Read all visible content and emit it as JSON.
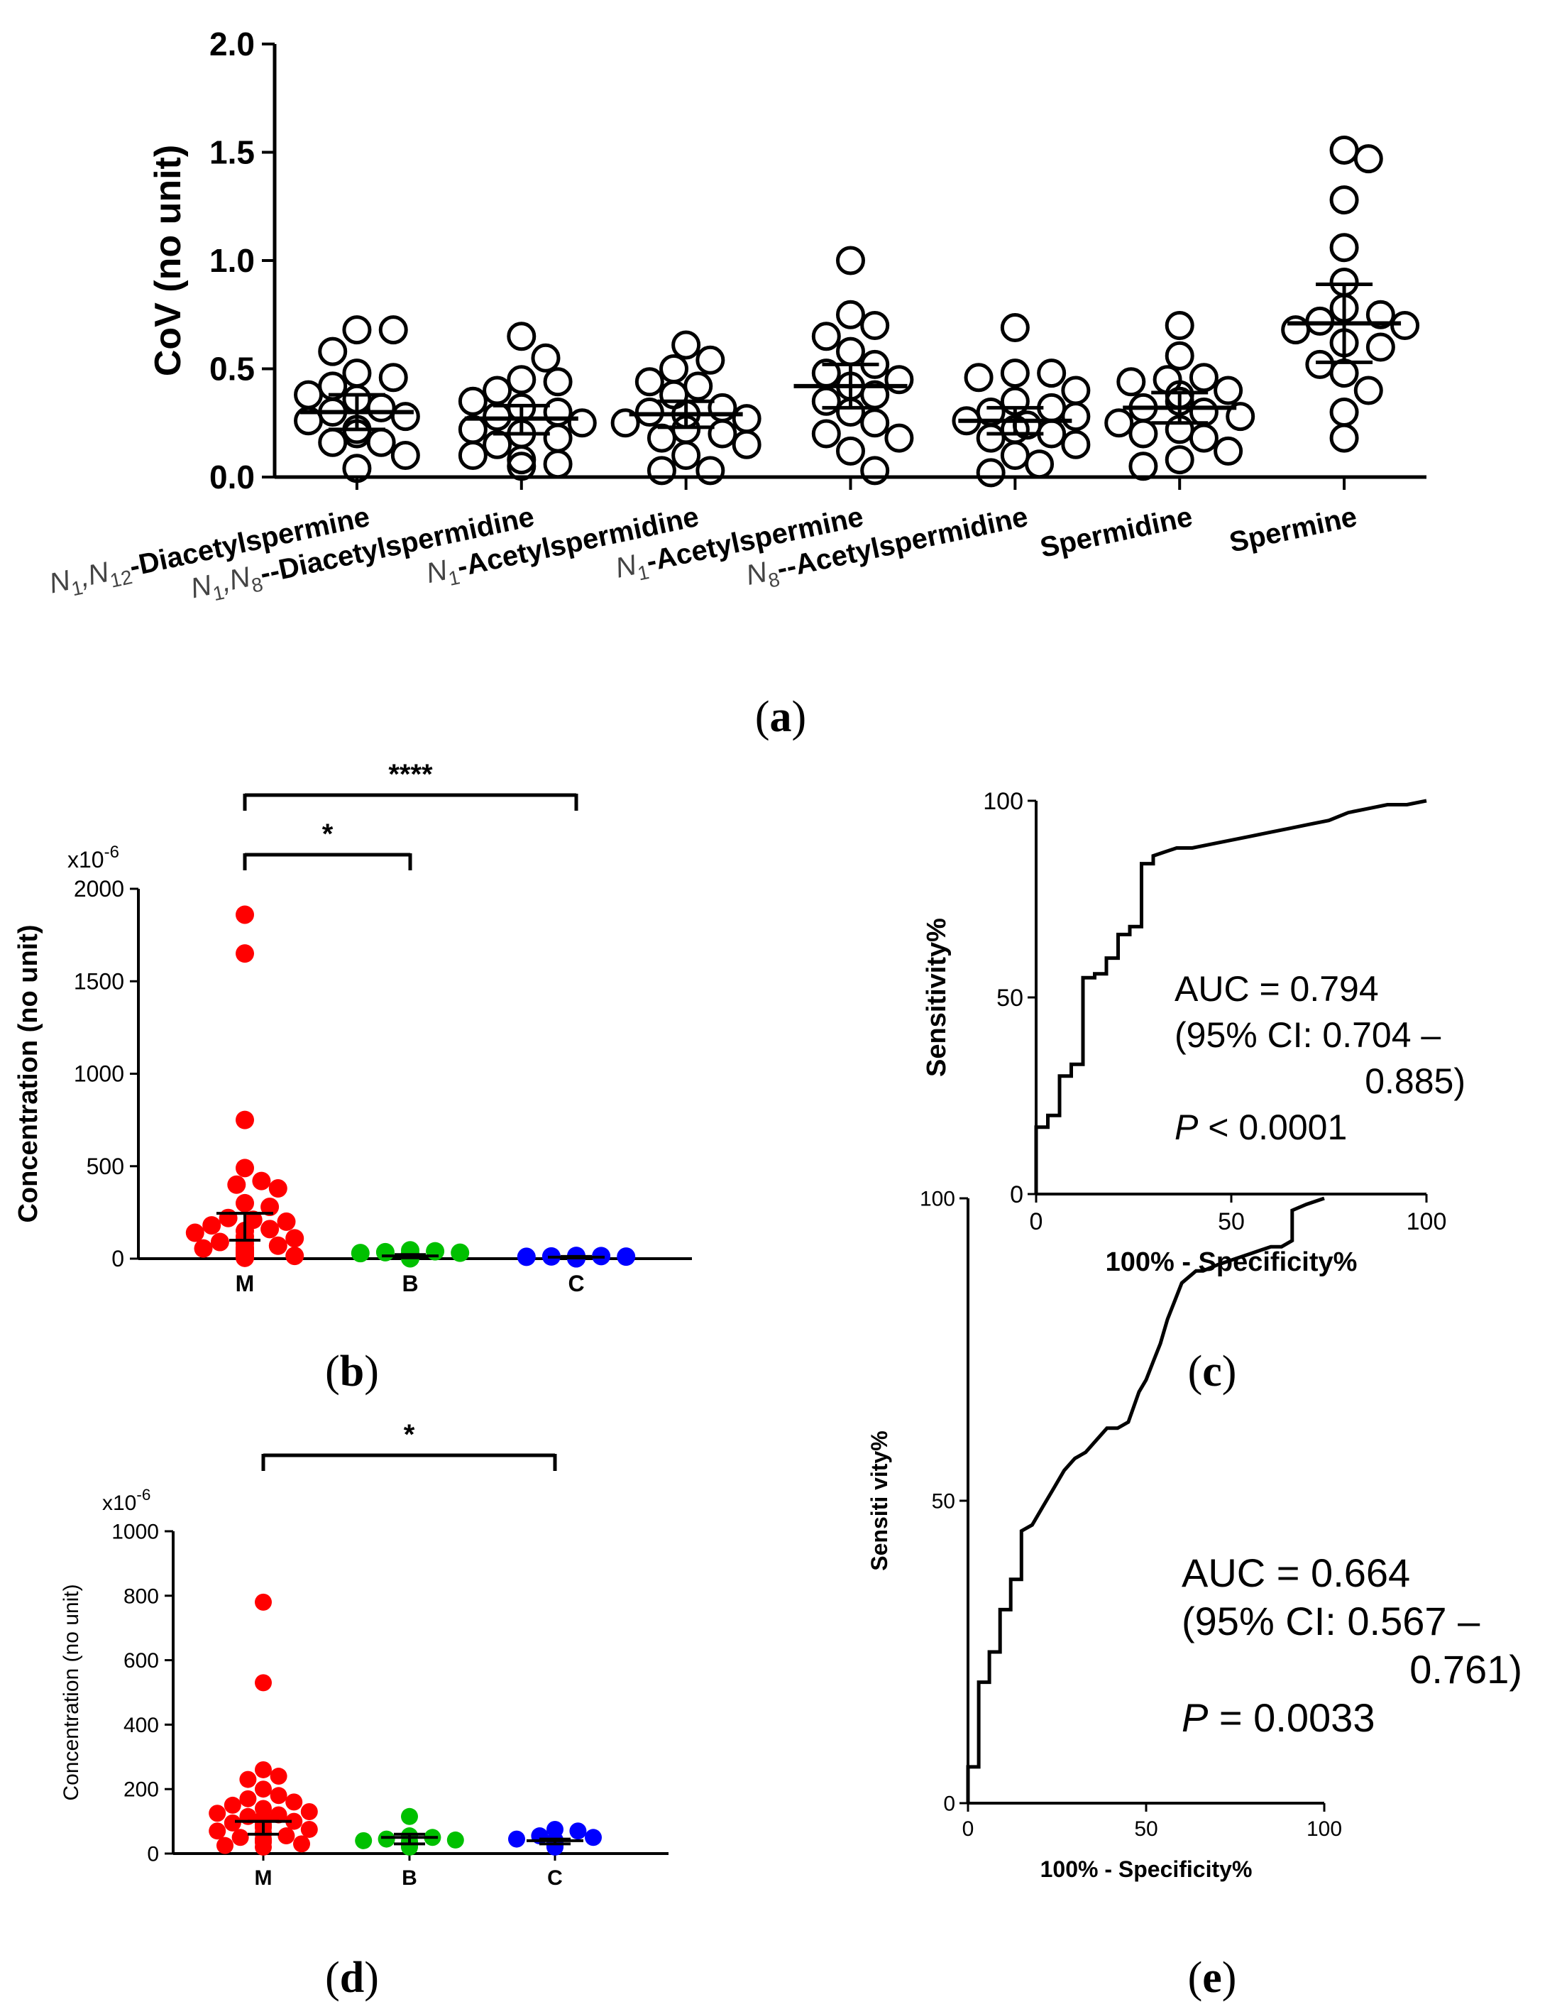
{
  "panel_labels": {
    "a": [
      "(",
      "a",
      ")"
    ],
    "b": [
      "(",
      "b",
      ")"
    ],
    "c": [
      "(",
      "c",
      ")"
    ],
    "d": [
      "(",
      "d",
      ")"
    ],
    "e": [
      "(",
      "e",
      ")"
    ]
  },
  "colors": {
    "M": "#ff0000",
    "B": "#00c000",
    "C": "#0000ff",
    "axis": "#000000"
  },
  "chart_data": [
    {
      "id": "a",
      "type": "scatter",
      "title": "",
      "ylabel": "CoV (no unit)",
      "ylim": [
        0,
        2
      ],
      "yticks": [
        "0.0",
        "0.5",
        "1.0",
        "1.5",
        "2.0"
      ],
      "ytick_values": [
        0,
        0.5,
        1.0,
        1.5,
        2.0
      ],
      "categories": [
        {
          "parts": [
            [
              "N",
              "i"
            ],
            [
              "1",
              "sub"
            ],
            [
              ",",
              "i"
            ],
            [
              "N",
              "i"
            ],
            [
              "12",
              "sub"
            ],
            [
              "-Diacetylspermine",
              "b"
            ]
          ]
        },
        {
          "parts": [
            [
              "N",
              "i"
            ],
            [
              "1",
              "sub"
            ],
            [
              ",",
              "i"
            ],
            [
              "N",
              "i"
            ],
            [
              "8",
              "sub"
            ],
            [
              "--Diacetylspermidine",
              "b"
            ]
          ]
        },
        {
          "parts": [
            [
              "N",
              "i"
            ],
            [
              "1",
              "sub"
            ],
            [
              "-Acetylspermidine",
              "b"
            ]
          ]
        },
        {
          "parts": [
            [
              "N",
              "i"
            ],
            [
              "1",
              "sub"
            ],
            [
              "-Acetylspermine",
              "b"
            ]
          ]
        },
        {
          "parts": [
            [
              "N",
              "i"
            ],
            [
              "8",
              "sub"
            ],
            [
              "--Acetylspermidine",
              "b"
            ]
          ]
        },
        {
          "parts": [
            [
              "Spermidine",
              "b"
            ]
          ]
        },
        {
          "parts": [
            [
              "Spermine",
              "b"
            ]
          ]
        }
      ],
      "series": [
        {
          "name": "N1,N12-Diacetylspermine",
          "mean": 0.3,
          "sem_low": 0.22,
          "sem_high": 0.38,
          "values": [
            0.68,
            0.68,
            0.58,
            0.48,
            0.46,
            0.42,
            0.38,
            0.36,
            0.32,
            0.3,
            0.28,
            0.26,
            0.22,
            0.2,
            0.16,
            0.16,
            0.1,
            0.04
          ]
        },
        {
          "name": "N1,N8-Diacetylspermidine",
          "mean": 0.27,
          "sem_low": 0.2,
          "sem_high": 0.33,
          "values": [
            0.65,
            0.55,
            0.45,
            0.44,
            0.4,
            0.35,
            0.32,
            0.3,
            0.28,
            0.25,
            0.22,
            0.2,
            0.18,
            0.15,
            0.1,
            0.08,
            0.06,
            0.05
          ]
        },
        {
          "name": "N1-Acetylspermidine",
          "mean": 0.29,
          "sem_low": 0.23,
          "sem_high": 0.35,
          "values": [
            0.61,
            0.54,
            0.5,
            0.44,
            0.42,
            0.38,
            0.32,
            0.3,
            0.29,
            0.27,
            0.25,
            0.22,
            0.2,
            0.18,
            0.15,
            0.1,
            0.03,
            0.03
          ]
        },
        {
          "name": "N1-Acetylspermine",
          "mean": 0.42,
          "sem_low": 0.32,
          "sem_high": 0.52,
          "values": [
            1.0,
            0.75,
            0.7,
            0.65,
            0.58,
            0.52,
            0.48,
            0.45,
            0.42,
            0.38,
            0.35,
            0.3,
            0.25,
            0.2,
            0.18,
            0.12,
            0.03
          ]
        },
        {
          "name": "N8-Acetylspermidine",
          "mean": 0.26,
          "sem_low": 0.2,
          "sem_high": 0.32,
          "values": [
            0.69,
            0.48,
            0.48,
            0.46,
            0.4,
            0.35,
            0.32,
            0.3,
            0.28,
            0.26,
            0.24,
            0.22,
            0.2,
            0.18,
            0.15,
            0.1,
            0.06,
            0.02
          ]
        },
        {
          "name": "Spermidine",
          "mean": 0.32,
          "sem_low": 0.25,
          "sem_high": 0.39,
          "values": [
            0.7,
            0.56,
            0.46,
            0.45,
            0.44,
            0.4,
            0.38,
            0.35,
            0.32,
            0.3,
            0.28,
            0.25,
            0.22,
            0.2,
            0.18,
            0.12,
            0.08,
            0.05
          ]
        },
        {
          "name": "Spermine",
          "mean": 0.71,
          "sem_low": 0.53,
          "sem_high": 0.89,
          "values": [
            1.51,
            1.47,
            1.28,
            1.06,
            0.9,
            0.78,
            0.75,
            0.72,
            0.7,
            0.68,
            0.62,
            0.6,
            0.52,
            0.48,
            0.4,
            0.3,
            0.18
          ]
        }
      ]
    },
    {
      "id": "b",
      "type": "scatter",
      "ylabel": "Concentration (no unit)",
      "scale_label": "x10",
      "scale_exp": "-6",
      "ylim": [
        0,
        2000
      ],
      "yticks": [
        "0",
        "500",
        "1000",
        "1500",
        "2000"
      ],
      "ytick_values": [
        0,
        500,
        1000,
        1500,
        2000
      ],
      "categories": [
        "M",
        "B",
        "C"
      ],
      "significance": [
        {
          "from": "M",
          "to": "C",
          "label": "****",
          "level": 2
        },
        {
          "from": "M",
          "to": "B",
          "label": "*",
          "level": 1
        }
      ],
      "series": [
        {
          "name": "M",
          "mean": 245,
          "sem_low": 100,
          "sem_high": 245,
          "values": [
            1860,
            1650,
            750,
            490,
            420,
            400,
            380,
            300,
            280,
            220,
            210,
            200,
            180,
            160,
            150,
            140,
            120,
            110,
            100,
            90,
            80,
            70,
            60,
            55,
            50,
            45,
            40,
            35,
            30,
            25,
            20,
            15,
            10,
            10,
            5,
            5
          ]
        },
        {
          "name": "B",
          "mean": 15,
          "sem_low": 5,
          "sem_high": 22,
          "values": [
            45,
            40,
            35,
            32,
            30,
            28,
            25,
            22,
            20,
            18,
            15,
            12,
            10,
            8,
            6,
            5,
            4,
            3,
            2
          ]
        },
        {
          "name": "C",
          "mean": 8,
          "sem_low": 4,
          "sem_high": 12,
          "values": [
            15,
            14,
            12,
            11,
            10,
            10,
            9,
            8,
            8,
            7,
            6,
            6,
            5,
            5,
            4,
            4,
            3,
            3,
            2,
            2
          ]
        }
      ]
    },
    {
      "id": "c",
      "type": "line",
      "xlabel": "100% - Specificity%",
      "ylabel": "Sensitivity%",
      "xlim": [
        0,
        100
      ],
      "ylim": [
        0,
        100
      ],
      "xticks": [
        "0",
        "50",
        "100"
      ],
      "xtick_values": [
        0,
        50,
        100
      ],
      "yticks": [
        "0",
        "50",
        "100"
      ],
      "ytick_values": [
        0,
        50,
        100
      ],
      "annotation": {
        "line1": "AUC = 0.794",
        "line2": "(95% CI: 0.704 –",
        "line3": "0.885)",
        "p_symbol": "P",
        "p_text": " < 0.0001"
      },
      "x": [
        0,
        0,
        3,
        3,
        6,
        6,
        9,
        9,
        12,
        12,
        15,
        15,
        18,
        18,
        21,
        21,
        24,
        24,
        27,
        27,
        30,
        30,
        33,
        36,
        40,
        45,
        50,
        55,
        60,
        65,
        70,
        75,
        80,
        85,
        90,
        95,
        100
      ],
      "y": [
        0,
        17,
        17,
        20,
        20,
        30,
        30,
        33,
        33,
        55,
        55,
        56,
        56,
        60,
        60,
        66,
        66,
        68,
        68,
        84,
        84,
        86,
        87,
        88,
        88,
        89,
        90,
        91,
        92,
        93,
        94,
        95,
        97,
        98,
        99,
        99,
        100
      ]
    },
    {
      "id": "d",
      "type": "scatter",
      "ylabel": "Concentration (no unit)",
      "scale_label": "x10",
      "scale_exp": "-6",
      "ylim": [
        0,
        1000
      ],
      "yticks": [
        "0",
        "200",
        "400",
        "600",
        "800",
        "1000"
      ],
      "ytick_values": [
        0,
        200,
        400,
        600,
        800,
        1000
      ],
      "categories": [
        "M",
        "B",
        "C"
      ],
      "significance": [
        {
          "from": "M",
          "to": "C",
          "label": "*",
          "level": 1
        }
      ],
      "series": [
        {
          "name": "M",
          "mean": 100,
          "sem_low": 60,
          "sem_high": 100,
          "values": [
            780,
            530,
            260,
            240,
            230,
            200,
            180,
            170,
            160,
            150,
            140,
            130,
            125,
            120,
            115,
            110,
            105,
            100,
            95,
            90,
            85,
            80,
            75,
            70,
            65,
            60,
            55,
            50,
            45,
            40,
            35,
            30,
            25,
            20
          ]
        },
        {
          "name": "B",
          "mean": 50,
          "sem_low": 30,
          "sem_high": 60,
          "values": [
            115,
            55,
            50,
            45,
            42,
            40,
            38,
            35,
            32,
            30,
            28,
            25,
            22,
            20
          ]
        },
        {
          "name": "C",
          "mean": 40,
          "sem_low": 30,
          "sem_high": 45,
          "values": [
            75,
            70,
            55,
            50,
            45,
            42,
            40,
            38,
            35,
            32,
            30,
            28,
            25,
            22,
            20
          ]
        }
      ]
    },
    {
      "id": "e",
      "type": "line",
      "xlabel": "100% - Specificity%",
      "ylabel": "Sensiti vity%",
      "xlim": [
        0,
        100
      ],
      "ylim": [
        0,
        100
      ],
      "xticks": [
        "0",
        "50",
        "100"
      ],
      "xtick_values": [
        0,
        50,
        100
      ],
      "yticks": [
        "0",
        "50",
        "100"
      ],
      "ytick_values": [
        0,
        50,
        100
      ],
      "annotation": {
        "line1": "AUC = 0.664",
        "line2": "(95% CI: 0.567 –",
        "line3": "0.761)",
        "p_symbol": "P",
        "p_text": " = 0.0033"
      },
      "x": [
        0,
        0,
        3,
        3,
        6,
        6,
        9,
        9,
        12,
        12,
        15,
        15,
        18,
        21,
        24,
        27,
        30,
        33,
        36,
        39,
        42,
        45,
        48,
        50,
        52,
        54,
        56,
        58,
        60,
        62,
        64,
        66,
        70,
        75,
        80,
        85,
        88,
        91,
        91,
        95,
        100
      ],
      "y": [
        0,
        6,
        6,
        20,
        20,
        25,
        25,
        32,
        32,
        37,
        37,
        45,
        46,
        49,
        52,
        55,
        57,
        58,
        60,
        62,
        62,
        63,
        68,
        70,
        73,
        76,
        80,
        83,
        86,
        87,
        88,
        88,
        89,
        90,
        91,
        92,
        92,
        93,
        98,
        99,
        100
      ]
    }
  ]
}
